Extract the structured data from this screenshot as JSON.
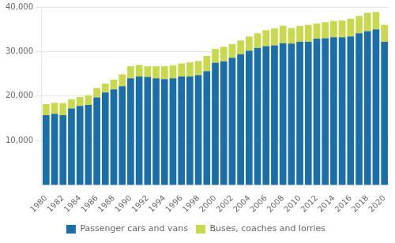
{
  "chart_data": {
    "type": "bar",
    "categories": [
      "1980",
      null,
      "1982",
      null,
      "1984",
      null,
      "1986",
      null,
      "1988",
      null,
      "1990",
      null,
      "1992",
      null,
      "1994",
      null,
      "1996",
      null,
      "1998",
      null,
      "2000",
      null,
      "2002",
      null,
      "2004",
      null,
      "2006",
      null,
      "2008",
      null,
      "2010",
      null,
      "2012",
      null,
      "2014",
      null,
      "2016",
      null,
      "2018",
      null,
      "2020"
    ],
    "series": [
      {
        "name": "Passenger cars and vans",
        "color": "#1a6fa8",
        "values": [
          15700,
          16000,
          15700,
          17200,
          17800,
          18000,
          19700,
          20800,
          21500,
          22200,
          24000,
          24400,
          24300,
          24000,
          23800,
          24000,
          24400,
          24400,
          24700,
          25600,
          27500,
          27800,
          28600,
          29400,
          30200,
          30800,
          31200,
          31400,
          31900,
          31800,
          32200,
          32200,
          32900,
          33000,
          33200,
          33200,
          33400,
          34100,
          34600,
          35000,
          32200
        ]
      },
      {
        "name": "Buses, coaches and lorries",
        "color": "#c8d94e",
        "values": [
          2500,
          2500,
          2700,
          2100,
          2000,
          2200,
          2100,
          2000,
          2200,
          2700,
          2700,
          2600,
          2400,
          2700,
          2900,
          2900,
          2900,
          3200,
          3200,
          3400,
          3100,
          3300,
          3100,
          3100,
          3200,
          3300,
          3600,
          3800,
          3900,
          3500,
          3600,
          3800,
          3400,
          3600,
          3700,
          3800,
          4000,
          3900,
          4100,
          3900,
          3800
        ]
      }
    ],
    "stacked": true,
    "ylim": [
      0,
      40000
    ],
    "yticks": [
      {
        "value": 10000,
        "label": "10,000"
      },
      {
        "value": 20000,
        "label": "20,000"
      },
      {
        "value": 30000,
        "label": "30,000"
      },
      {
        "value": 40000,
        "label": "40,000"
      }
    ],
    "grid": true,
    "legend": "bottom"
  }
}
